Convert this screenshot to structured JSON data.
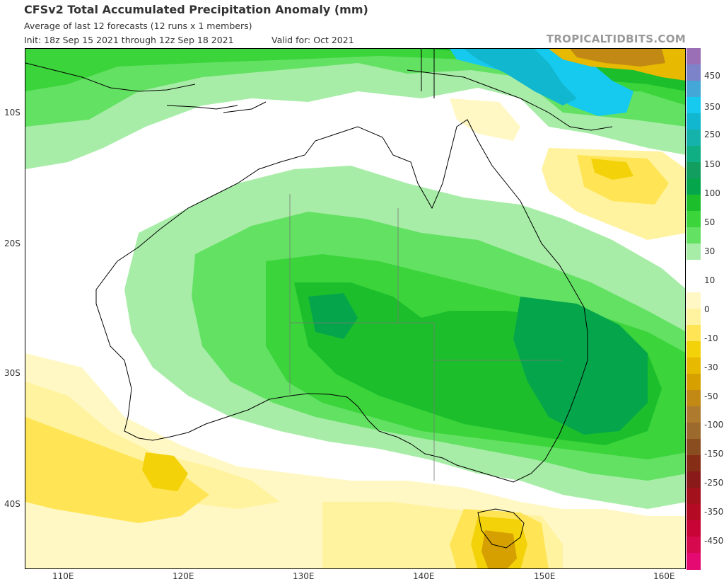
{
  "header": {
    "title": "CFSv2 Total Accumulated Precipitation Anomaly (mm)",
    "subtitle": "Average of last 12 forecasts (12 runs x 1 members)",
    "init": "Init: 18z Sep 15 2021 through 12z Sep 18 2021",
    "valid": "Valid for: Oct 2021",
    "brand": "TROPICALTIDBITS.COM"
  },
  "axes": {
    "lat_labels": [
      "10S",
      "20S",
      "30S",
      "40S"
    ],
    "lon_labels": [
      "110E",
      "120E",
      "130E",
      "140E",
      "150E",
      "160E"
    ]
  },
  "colorbar": {
    "labels": [
      "450",
      "350",
      "250",
      "150",
      "100",
      "50",
      "30",
      "10",
      "0",
      "-10",
      "-30",
      "-50",
      "-100",
      "-150",
      "-250",
      "-350",
      "-450"
    ],
    "colors": [
      "#9b6fb5",
      "#7d83c8",
      "#43a8d7",
      "#16c9ef",
      "#11b6cf",
      "#14b2aa",
      "#0fae83",
      "#129e5e",
      "#05a64b",
      "#1cbf2b",
      "#3bd43b",
      "#63e163",
      "#a7eda7",
      "#ffffff",
      "#ffffff",
      "#fff8c4",
      "#fff3a0",
      "#ffe556",
      "#f4d20a",
      "#e7b900",
      "#d6a100",
      "#c28a14",
      "#ae7a2e",
      "#9c6a2c",
      "#8a4d20",
      "#862d16",
      "#8a1a1a",
      "#a3111c",
      "#b50a24",
      "#c70435",
      "#d6084e",
      "#e50a72"
    ]
  }
}
